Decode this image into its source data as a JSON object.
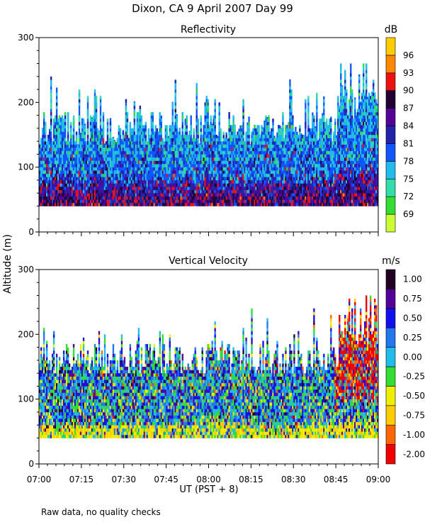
{
  "header": {
    "title": "Dixon, CA   9 April 2007   Day  99",
    "footer_note": "Raw data, no quality checks"
  },
  "x_axis": {
    "label": "UT  (PST + 8)",
    "range": [
      "07:00",
      "09:00"
    ],
    "tick_labels": [
      "07:00",
      "07:15",
      "07:30",
      "07:45",
      "08:00",
      "08:15",
      "08:30",
      "08:45",
      "09:00"
    ]
  },
  "y_axis": {
    "label": "Altitude (m)",
    "range": [
      0,
      300
    ],
    "tick_labels": [
      "0",
      "100",
      "200",
      "300"
    ]
  },
  "chart_data": [
    {
      "type": "heatmap",
      "title": "Reflectivity",
      "colorbar_unit": "dB",
      "colorbar_labels": [
        "69",
        "72",
        "75",
        "78",
        "81",
        "84",
        "87",
        "90",
        "93",
        "96"
      ],
      "colorbar_colors": [
        "#ccff33",
        "#33dd33",
        "#33ddaa",
        "#22bbee",
        "#1155ff",
        "#2222aa",
        "#550099",
        "#220033",
        "#ee1111",
        "#ff8800",
        "#ffcc00"
      ],
      "data_floor_m": 40,
      "typical_echo_top_m": 160,
      "max_echo_top_m": 260,
      "grid": false
    },
    {
      "type": "heatmap",
      "title": "Vertical Velocity",
      "colorbar_unit": "m/s",
      "colorbar_labels": [
        "1.00",
        "0.75",
        "0.50",
        "0.25",
        "0.00",
        "-0.25",
        "-0.50",
        "-0.75",
        "-1.00",
        "-2.00"
      ],
      "colorbar_colors": [
        "#ee0000",
        "#ff6600",
        "#ffcc00",
        "#eeee00",
        "#33dd33",
        "#22bbee",
        "#2277ee",
        "#1111ee",
        "#550099",
        "#220022"
      ],
      "data_floor_m": 40,
      "typical_echo_top_m": 160,
      "max_echo_top_m": 260,
      "grid": false
    }
  ]
}
